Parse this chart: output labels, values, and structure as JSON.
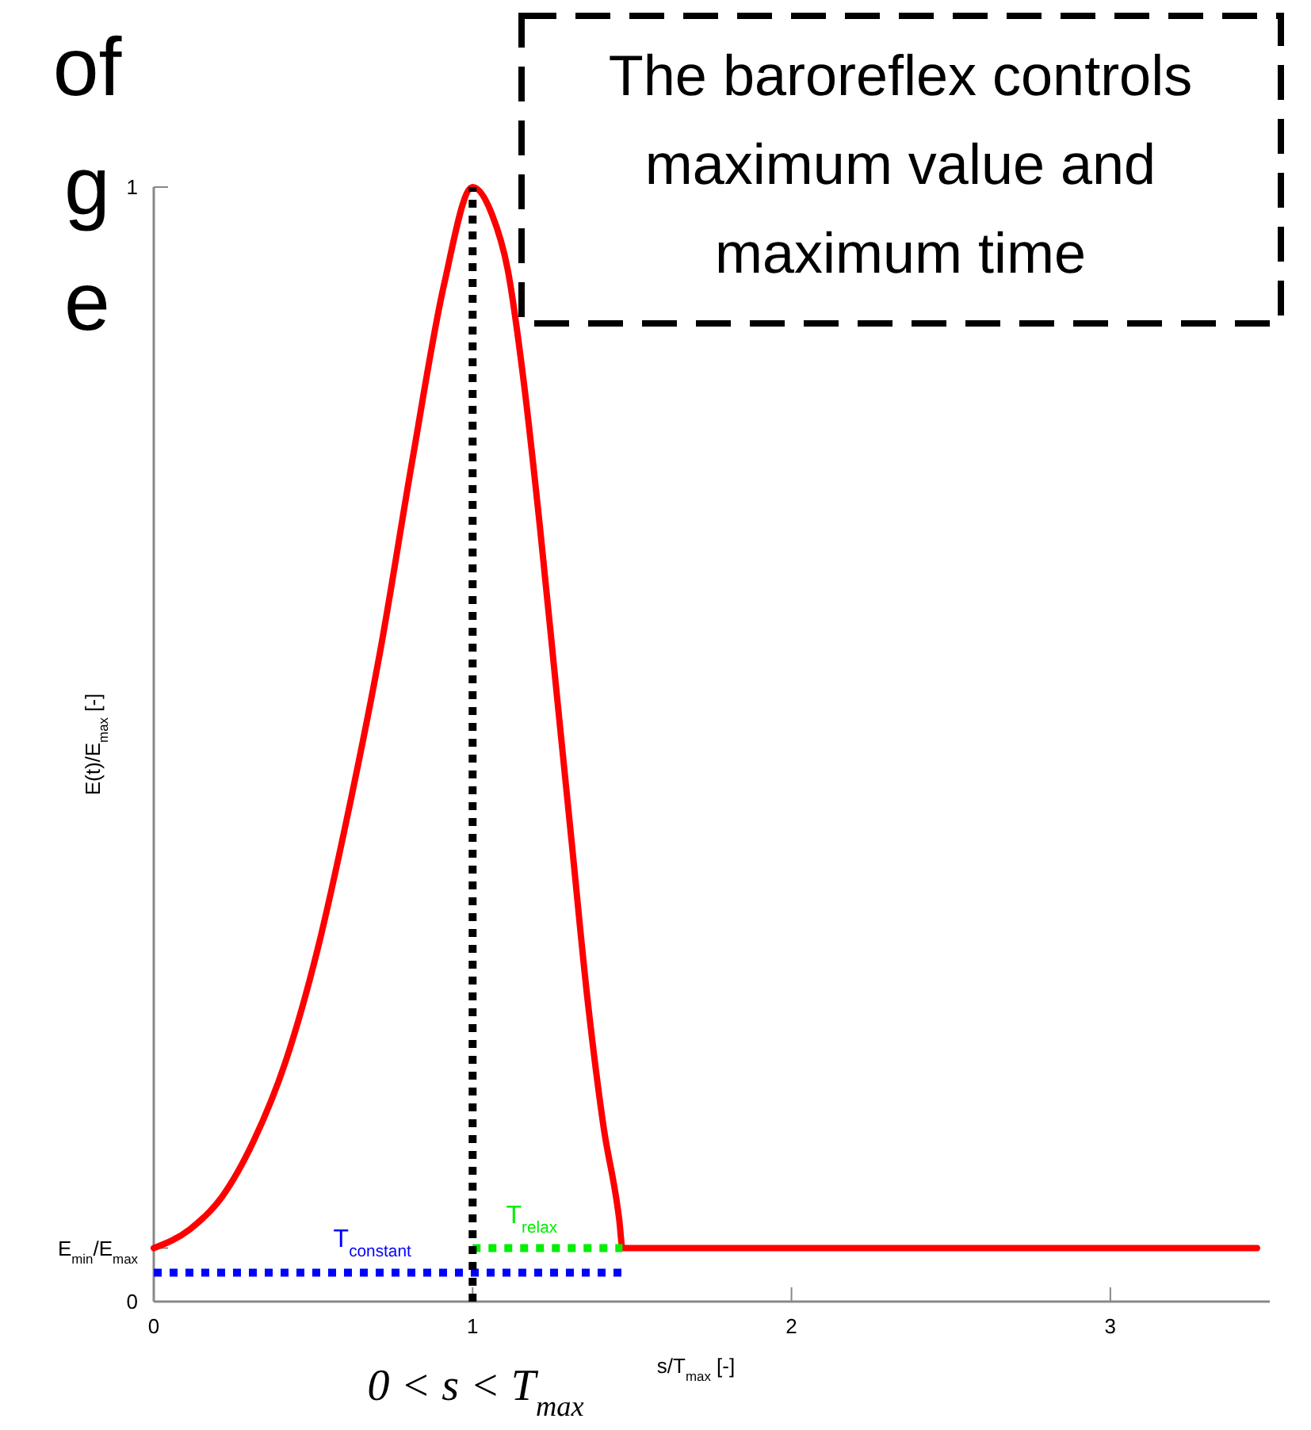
{
  "chart_data": {
    "type": "line",
    "xlabel": "s/T$_{max}$ [-]",
    "ylabel": "E(t)/E$_{max}$ [-]",
    "xlim": [
      0,
      3.5
    ],
    "ylim": [
      0,
      1
    ],
    "xticks": [
      0,
      1,
      2,
      3
    ],
    "yticks": [
      0,
      {
        "value": 0.048,
        "label": "E$_{min}$/E$_{max}$"
      },
      1
    ],
    "grid": false,
    "marker": "none",
    "series": [
      {
        "color": "#ff0000",
        "line_style": "solid",
        "x": [
          0,
          0.114,
          0.214,
          0.313,
          0.413,
          0.512,
          0.612,
          0.711,
          0.811,
          0.91,
          1,
          1.06,
          1.11,
          1.16,
          1.21,
          1.26,
          1.31,
          1.36,
          1.41,
          1.46,
          1.47,
          3.46
        ],
        "values": [
          0.048,
          0.065,
          0.094,
          0.144,
          0.215,
          0.314,
          0.442,
          0.585,
          0.755,
          0.912,
          1,
          0.976,
          0.926,
          0.826,
          0.698,
          0.556,
          0.414,
          0.272,
          0.158,
          0.073,
          0.048,
          0.048
        ]
      },
      {
        "name": "T$_{constant}$",
        "color": "#0000ff",
        "line_style": "dotted",
        "x": [
          0,
          1.47
        ],
        "values": [
          0.026,
          0.026
        ]
      },
      {
        "name": "T$_{relax}$",
        "color": "#00ee00",
        "line_style": "dotted",
        "x": [
          1,
          1.47
        ],
        "values": [
          0.048,
          0.048
        ]
      }
    ],
    "ref_lines": [
      {
        "axis": "x",
        "value": 1,
        "color": "#000000",
        "line_style": "dotted"
      }
    ],
    "annotations": [
      "The baroreflex controls maximum value and maximum time",
      "of",
      "g",
      "e",
      "0 < s < T$_{max}$"
    ]
  }
}
